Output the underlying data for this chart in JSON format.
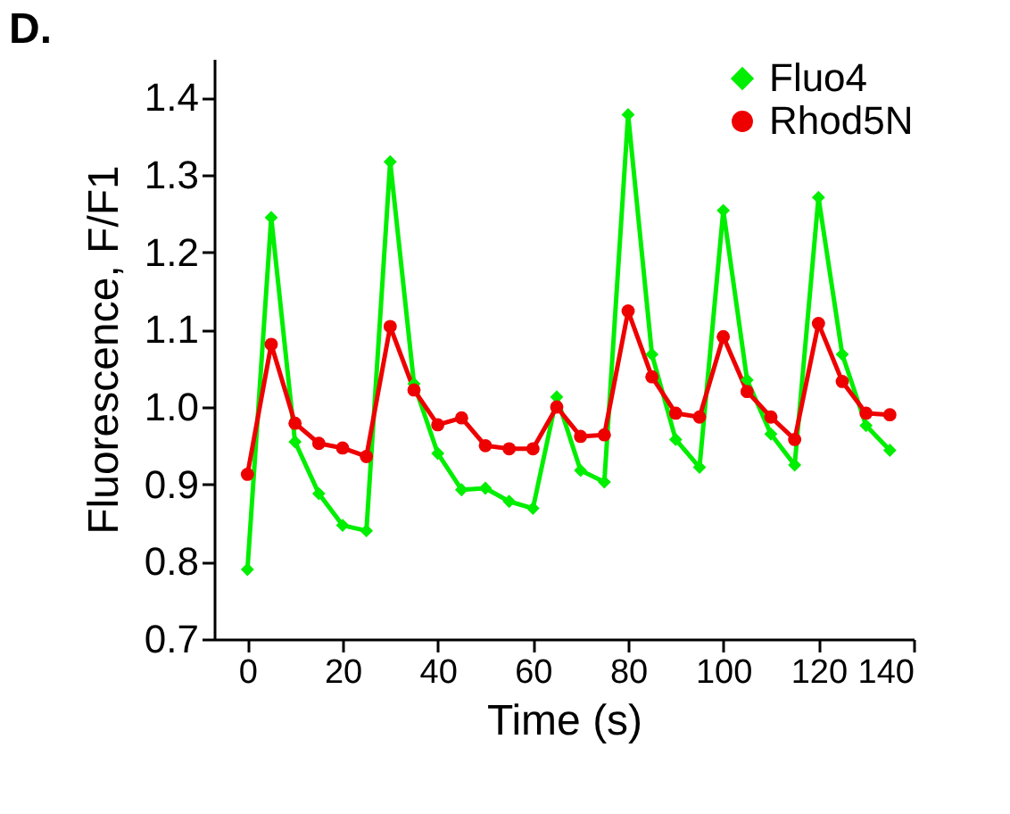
{
  "chart_data": {
    "type": "line",
    "title": "D.",
    "xlabel": "Time (s)",
    "ylabel": "Fluorescence, F/F1",
    "x": [
      0,
      5,
      10,
      15,
      20,
      25,
      30,
      35,
      40,
      45,
      50,
      55,
      60,
      65,
      70,
      75,
      80,
      85,
      90,
      95,
      100,
      105,
      110,
      115,
      120,
      125,
      130,
      135
    ],
    "series": [
      {
        "name": "Fluo4",
        "color": "#00ee00",
        "marker": "diamond",
        "values": [
          0.79,
          1.245,
          0.955,
          0.888,
          0.847,
          0.84,
          1.317,
          1.03,
          0.94,
          0.893,
          0.895,
          0.878,
          0.869,
          1.013,
          0.918,
          0.903,
          1.378,
          1.068,
          0.958,
          0.922,
          1.254,
          1.035,
          0.965,
          0.925,
          1.271,
          1.068,
          0.976,
          0.944
        ]
      },
      {
        "name": "Rhod5N",
        "color": "#ee0000",
        "marker": "circle",
        "values": [
          0.913,
          1.081,
          0.979,
          0.953,
          0.947,
          0.936,
          1.104,
          1.022,
          0.977,
          0.986,
          0.95,
          0.946,
          0.946,
          1.0,
          0.962,
          0.964,
          1.124,
          1.039,
          0.992,
          0.987,
          1.091,
          1.02,
          0.987,
          0.958,
          1.108,
          1.033,
          0.992,
          0.99
        ]
      }
    ],
    "xlim": [
      -7,
      140
    ],
    "xticks": [
      0,
      20,
      40,
      60,
      80,
      100,
      120,
      140
    ],
    "ylim": [
      0.7,
      1.45
    ],
    "yticks": [
      0.7,
      0.8,
      0.9,
      {
        "value": 1,
        "label": "1.0"
      },
      1.1,
      1.2,
      1.3,
      1.4
    ],
    "legend": "top right",
    "grid": false,
    "line_style": "solid"
  }
}
